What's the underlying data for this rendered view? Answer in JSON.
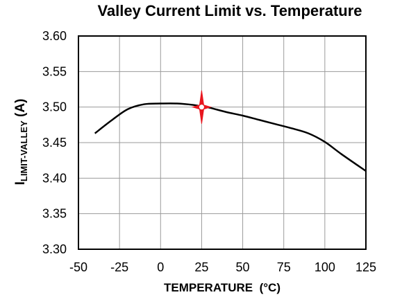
{
  "chart_data": {
    "type": "line",
    "title": "Valley Current Limit vs. Temperature",
    "xlabel": "TEMPERATURE  (°C)",
    "ylabel_main": "I",
    "ylabel_sub": "LIMIT-VALLEY",
    "ylabel_unit": " (A)",
    "xlim": [
      -50,
      125
    ],
    "ylim": [
      3.3,
      3.6
    ],
    "x_ticks": [
      -50,
      -25,
      0,
      25,
      50,
      75,
      100,
      125
    ],
    "x_tick_labels": [
      "-50",
      "-25",
      "0",
      "25",
      "50",
      "75",
      "100",
      "125"
    ],
    "y_ticks": [
      3.3,
      3.35,
      3.4,
      3.45,
      3.5,
      3.55,
      3.6
    ],
    "y_tick_labels": [
      "3.30",
      "3.35",
      "3.40",
      "3.45",
      "3.50",
      "3.55",
      "3.60"
    ],
    "grid": true,
    "series": [
      {
        "color": "#000000",
        "x": [
          -40,
          -30,
          -20,
          -10,
          0,
          10,
          20,
          25,
          30,
          40,
          50,
          60,
          70,
          80,
          90,
          100,
          110,
          125
        ],
        "y": [
          3.463,
          3.481,
          3.497,
          3.504,
          3.505,
          3.505,
          3.503,
          3.501,
          3.499,
          3.493,
          3.488,
          3.482,
          3.476,
          3.47,
          3.463,
          3.451,
          3.434,
          3.41
        ]
      }
    ],
    "marker": {
      "x": 25,
      "y": 3.5,
      "color": "#e8161e"
    }
  }
}
